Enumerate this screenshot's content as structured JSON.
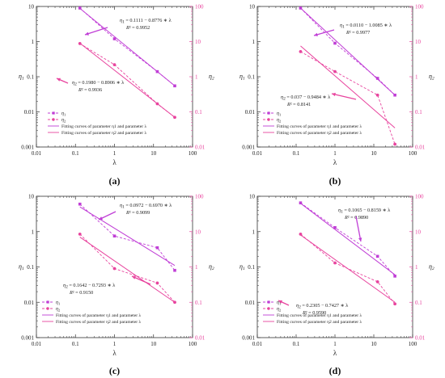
{
  "figure": {
    "colors": {
      "series1": "#c03ed6",
      "series2": "#e8449e",
      "axis": "#333333",
      "right_axis": "#e8449e"
    },
    "left_axis_label": "η",
    "left_axis_sub": "1",
    "right_axis_label": "η",
    "right_axis_sub": "2",
    "legend_labels": [
      "η1",
      "η2",
      "Fitting curves of parameter η1 and parameter λ",
      "Fitting curves of parameter η2 and parameter λ"
    ]
  },
  "chart_data": [
    {
      "type": "line",
      "caption": "(a)",
      "xlabel": "λ",
      "xscale": "log",
      "xlim": [
        0.01,
        100
      ],
      "y1scale": "log",
      "ylim_left": [
        0.001,
        10
      ],
      "ylim_right": [
        0.01,
        100
      ],
      "x_ticks": [
        "0.01",
        "0.1",
        "1",
        "10",
        "100"
      ],
      "y_left_ticks": [
        "0.001",
        "0.01",
        "0.1",
        "1",
        "10"
      ],
      "y_right_ticks": [
        "0.01",
        "0.1",
        "1",
        "10",
        "100"
      ],
      "series": [
        {
          "name": "η1",
          "axis": "left",
          "x": [
            0.13,
            1,
            12.5,
            35
          ],
          "y": [
            9.0,
            1.2,
            0.14,
            0.055
          ]
        },
        {
          "name": "η2",
          "axis": "right",
          "x": [
            0.13,
            1,
            12.5,
            35
          ],
          "y": [
            8.8,
            2.2,
            0.17,
            0.07
          ]
        }
      ],
      "fits": [
        {
          "series": "η1",
          "axis": "left",
          "x": [
            0.13,
            35
          ],
          "y": [
            8.8,
            0.055
          ]
        },
        {
          "series": "η2",
          "axis": "right",
          "x": [
            0.13,
            35
          ],
          "y": [
            9.0,
            0.07
          ]
        }
      ],
      "annotations": [
        {
          "eq": "η1 = 0.1111 − 0.8776 ∗ λ",
          "r2": "R² = 0.9952"
        },
        {
          "eq": "η2 = 0.1980 − 0.8906 ∗ λ",
          "r2": "R² = 0.9936"
        }
      ]
    },
    {
      "type": "line",
      "caption": "(b)",
      "xlabel": "λ",
      "xscale": "log",
      "xlim": [
        0.01,
        100
      ],
      "y1scale": "log",
      "ylim_left": [
        0.001,
        10
      ],
      "ylim_right": [
        0.01,
        100
      ],
      "x_ticks": [
        "0.01",
        "0.1",
        "1",
        "10",
        "100"
      ],
      "y_left_ticks": [
        "0.001",
        "0.01",
        "0.1",
        "1",
        "10"
      ],
      "y_right_ticks": [
        "0.01",
        "0.1",
        "1",
        "10",
        "100"
      ],
      "series": [
        {
          "name": "η1",
          "axis": "left",
          "x": [
            0.13,
            1,
            12.5,
            35
          ],
          "y": [
            9.0,
            0.9,
            0.09,
            0.03
          ]
        },
        {
          "name": "η2",
          "axis": "right",
          "x": [
            0.13,
            1,
            12.5,
            35
          ],
          "y": [
            5.2,
            1.4,
            0.3,
            0.012
          ]
        }
      ],
      "fits": [
        {
          "series": "η1",
          "axis": "left",
          "x": [
            0.13,
            35
          ],
          "y": [
            9.0,
            0.03
          ]
        },
        {
          "series": "η2",
          "axis": "right",
          "x": [
            0.13,
            35
          ],
          "y": [
            7.5,
            0.035
          ]
        }
      ],
      "annotations": [
        {
          "eq": "η1 = 0.0110 − 1.0085 ∗ λ",
          "r2": "R² = 0.9977"
        },
        {
          "eq": "η2 = 0.037 − 0.9484 ∗ λ",
          "r2": "R² = 0.8141"
        }
      ]
    },
    {
      "type": "line",
      "caption": "(c)",
      "xlabel": "λ",
      "xscale": "log",
      "xlim": [
        0.01,
        100
      ],
      "y1scale": "log",
      "ylim_left": [
        0.001,
        10
      ],
      "ylim_right": [
        0.01,
        100
      ],
      "x_ticks": [
        "0.01",
        "0.1",
        "1",
        "10",
        "100"
      ],
      "y_left_ticks": [
        "0.001",
        "0.01",
        "0.1",
        "1",
        "10"
      ],
      "y_right_ticks": [
        "0.01",
        "0.1",
        "1",
        "10",
        "100"
      ],
      "series": [
        {
          "name": "η1",
          "axis": "left",
          "x": [
            0.13,
            1,
            12.5,
            35
          ],
          "y": [
            6.0,
            0.75,
            0.35,
            0.08
          ]
        },
        {
          "name": "η2",
          "axis": "right",
          "x": [
            0.13,
            1,
            12.5,
            35
          ],
          "y": [
            8.5,
            0.9,
            0.35,
            0.1
          ]
        }
      ],
      "fits": [
        {
          "series": "η1",
          "axis": "left",
          "x": [
            0.13,
            35
          ],
          "y": [
            5.0,
            0.11
          ]
        },
        {
          "series": "η2",
          "axis": "right",
          "x": [
            0.13,
            35
          ],
          "y": [
            7.0,
            0.1
          ]
        }
      ],
      "annotations": [
        {
          "eq": "η1 = 0.0972 − 0.6970 ∗ λ",
          "r2": "R² = 0.9099"
        },
        {
          "eq": "η2 = 0.1642 − 0.7293 ∗ λ",
          "r2": "R² = 0.9150"
        }
      ]
    },
    {
      "type": "line",
      "caption": "(d)",
      "xlabel": "λ",
      "xscale": "log",
      "xlim": [
        0.01,
        100
      ],
      "y1scale": "log",
      "ylim_left": [
        0.001,
        10
      ],
      "ylim_right": [
        0.01,
        100
      ],
      "x_ticks": [
        "0.01",
        "0.1",
        "1",
        "10",
        "100"
      ],
      "y_left_ticks": [
        "0.001",
        "0.01",
        "0.1",
        "1",
        "10"
      ],
      "y_right_ticks": [
        "0.01",
        "0.1",
        "1",
        "10",
        "100"
      ],
      "series": [
        {
          "name": "η1",
          "axis": "left",
          "x": [
            0.13,
            1,
            12.5,
            35
          ],
          "y": [
            6.5,
            1.3,
            0.2,
            0.055
          ]
        },
        {
          "name": "η2",
          "axis": "right",
          "x": [
            0.13,
            1,
            12.5,
            35
          ],
          "y": [
            8.5,
            1.3,
            0.38,
            0.09
          ]
        }
      ],
      "fits": [
        {
          "series": "η1",
          "axis": "left",
          "x": [
            0.13,
            35
          ],
          "y": [
            6.3,
            0.06
          ]
        },
        {
          "series": "η2",
          "axis": "right",
          "x": [
            0.13,
            35
          ],
          "y": [
            8.0,
            0.1
          ]
        }
      ],
      "annotations": [
        {
          "eq": "η1 = 0.1065 − 0.8159 ∗ λ",
          "r2": "R² = 0.9890"
        },
        {
          "eq": "η2 = 0.2305 − 0.7427 ∗ λ",
          "r2": "R² = 0.9590"
        }
      ]
    }
  ]
}
